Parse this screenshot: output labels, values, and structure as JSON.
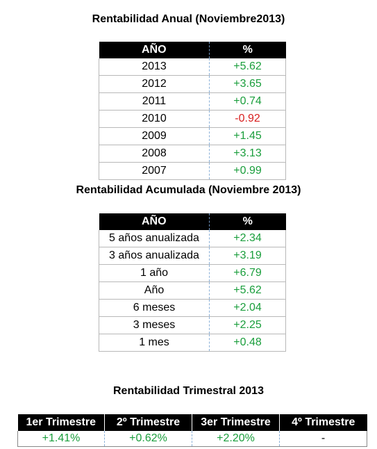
{
  "annual": {
    "title": "Rentabilidad Anual (Noviembre2013)",
    "headers": [
      "AÑO",
      "%"
    ],
    "rows": [
      {
        "year": "2013",
        "value": "+5.62",
        "sign": "pos"
      },
      {
        "year": "2012",
        "value": "+3.65",
        "sign": "pos"
      },
      {
        "year": "2011",
        "value": "+0.74",
        "sign": "pos"
      },
      {
        "year": "2010",
        "value": "-0.92",
        "sign": "neg"
      },
      {
        "year": "2009",
        "value": "+1.45",
        "sign": "pos"
      },
      {
        "year": "2008",
        "value": "+3.13",
        "sign": "pos"
      },
      {
        "year": "2007",
        "value": "+0.99",
        "sign": "pos"
      }
    ]
  },
  "cumulative": {
    "title": "Rentabilidad Acumulada (Noviembre 2013)",
    "headers": [
      "AÑO",
      "%"
    ],
    "rows": [
      {
        "period": "5 años anualizada",
        "value": "+2.34",
        "sign": "pos"
      },
      {
        "period": "3 años anualizada",
        "value": "+3.19",
        "sign": "pos"
      },
      {
        "period": "1 año",
        "value": "+6.79",
        "sign": "pos"
      },
      {
        "period": "Año",
        "value": "+5.62",
        "sign": "pos"
      },
      {
        "period": "6 meses",
        "value": "+2.04",
        "sign": "pos"
      },
      {
        "period": "3 meses",
        "value": "+2.25",
        "sign": "pos"
      },
      {
        "period": "1 mes",
        "value": "+0.48",
        "sign": "pos"
      }
    ]
  },
  "quarterly": {
    "title": "Rentabilidad Trimestral 2013",
    "headers": [
      "1er Trimestre",
      "2º Trimestre",
      "3er Trimestre",
      "4º Trimestre"
    ],
    "values": [
      {
        "value": "+1.41%",
        "sign": "pos"
      },
      {
        "value": "+0.62%",
        "sign": "pos"
      },
      {
        "value": "+2.20%",
        "sign": "pos"
      },
      {
        "value": "-",
        "sign": "neu"
      }
    ]
  },
  "colors": {
    "positive": "#1a9e3c",
    "negative": "#d81f1f",
    "header_bg": "#000000",
    "header_text": "#ffffff"
  }
}
